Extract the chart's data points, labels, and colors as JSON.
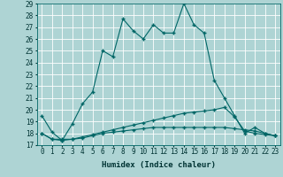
{
  "xlabel": "Humidex (Indice chaleur)",
  "xlim": [
    -0.5,
    23.5
  ],
  "ylim": [
    17,
    29
  ],
  "yticks": [
    17,
    18,
    19,
    20,
    21,
    22,
    23,
    24,
    25,
    26,
    27,
    28,
    29
  ],
  "xticks": [
    0,
    1,
    2,
    3,
    4,
    5,
    6,
    7,
    8,
    9,
    10,
    11,
    12,
    13,
    14,
    15,
    16,
    17,
    18,
    19,
    20,
    21,
    22,
    23
  ],
  "xtick_labels": [
    "0",
    "1",
    "2",
    "3",
    "4",
    "5",
    "6",
    "7",
    "8",
    "9",
    "10",
    "11",
    "12",
    "13",
    "14",
    "15",
    "16",
    "17",
    "18",
    "19",
    "20",
    "21",
    "22",
    "23"
  ],
  "background_color": "#aed4d4",
  "grid_color": "#ffffff",
  "line_color": "#006666",
  "line1_y": [
    19.5,
    18.1,
    17.4,
    18.8,
    20.5,
    21.5,
    25.0,
    24.5,
    27.7,
    26.7,
    26.0,
    27.2,
    26.5,
    26.5,
    29.0,
    27.2,
    26.5,
    22.5,
    21.0,
    19.5,
    18.0,
    18.5,
    18.0,
    17.8
  ],
  "line2_y": [
    18.0,
    17.5,
    17.5,
    17.5,
    17.7,
    17.9,
    18.1,
    18.3,
    18.5,
    18.7,
    18.9,
    19.1,
    19.3,
    19.5,
    19.7,
    19.8,
    19.9,
    20.0,
    20.2,
    19.4,
    18.2,
    18.0,
    17.9,
    17.8
  ],
  "line3_y": [
    18.0,
    17.5,
    17.4,
    17.5,
    17.6,
    17.8,
    18.0,
    18.1,
    18.2,
    18.3,
    18.4,
    18.5,
    18.5,
    18.5,
    18.5,
    18.5,
    18.5,
    18.5,
    18.5,
    18.4,
    18.3,
    18.2,
    18.0,
    17.8
  ],
  "marker": "+",
  "markersize": 3,
  "linewidth": 0.8,
  "label_fontsize": 6.5,
  "tick_fontsize": 5.5
}
